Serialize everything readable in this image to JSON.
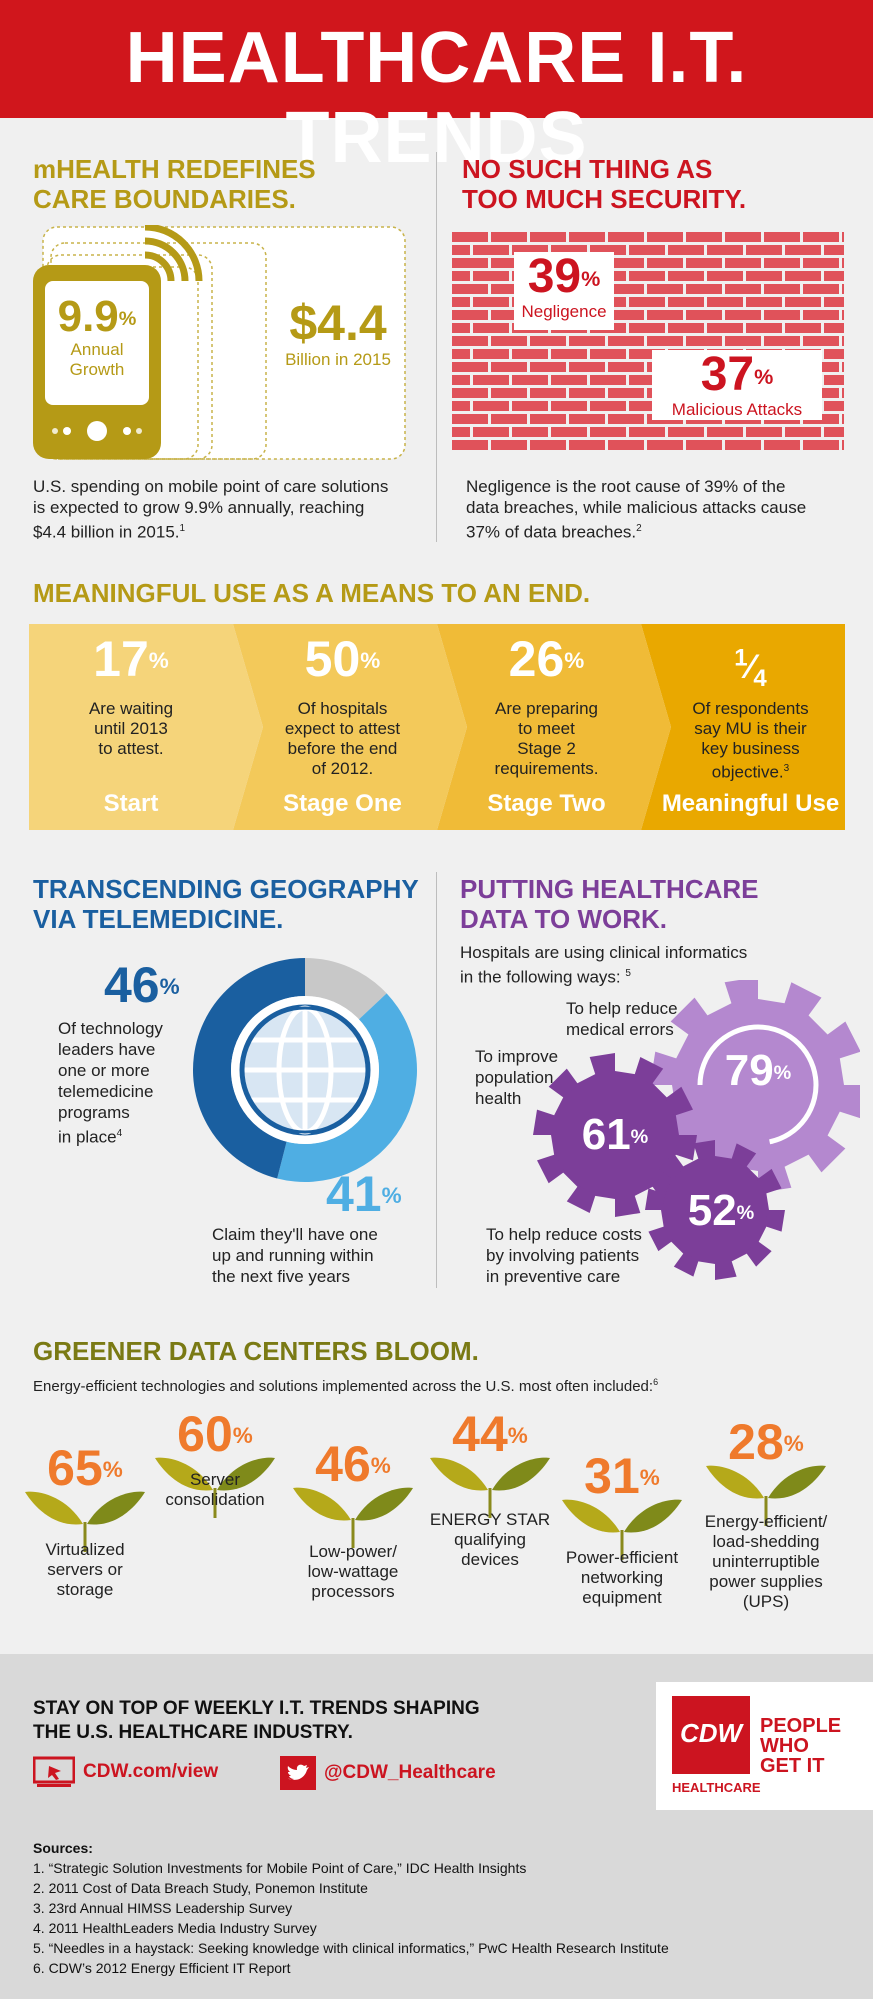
{
  "header": {
    "title": "HEALTHCARE I.T. TRENDS"
  },
  "mhealth": {
    "title_line1": "mHEALTH REDEFINES",
    "title_line2": "CARE BOUNDARIES.",
    "pct": "9.9",
    "pct_unit": "%",
    "pct_label_1": "Annual",
    "pct_label_2": "Growth",
    "amount": "$4.4",
    "amount_label": "Billion in 2015",
    "desc_1": "U.S. spending on mobile point of care solutions",
    "desc_2": "is expected to grow 9.9% annually, reaching",
    "desc_3": "$4.4 billion in 2015.",
    "desc_ref": "1"
  },
  "security": {
    "title_line1": "NO SUCH THING AS",
    "title_line2": "TOO MUCH SECURITY.",
    "stat1_value": "39",
    "stat1_unit": "%",
    "stat1_label": "Negligence",
    "stat2_value": "37",
    "stat2_unit": "%",
    "stat2_label": "Malicious Attacks",
    "desc_1": "Negligence is the root cause of 39% of the",
    "desc_2": "data breaches, while malicious attacks cause",
    "desc_3": "37% of data breaches.",
    "desc_ref": "2"
  },
  "meaningful_use": {
    "title": "MEANINGFUL USE AS A MEANS TO AN END.",
    "steps": [
      {
        "value": "17",
        "unit": "%",
        "desc": [
          "Are waiting",
          "until 2013",
          "to attest."
        ],
        "ref": "",
        "label": "Start",
        "color": "#f5d47a"
      },
      {
        "value": "50",
        "unit": "%",
        "desc": [
          "Of hospitals",
          "expect to attest",
          "before the end",
          "of 2012."
        ],
        "ref": "",
        "label": "Stage One",
        "color": "#f3c95a"
      },
      {
        "value": "26",
        "unit": "%",
        "desc": [
          "Are preparing",
          "to meet",
          "Stage 2",
          "requirements."
        ],
        "ref": "",
        "label": "Stage Two",
        "color": "#f0bb37"
      },
      {
        "value": "1/4",
        "unit": "",
        "desc": [
          "Of respondents",
          "say MU is their",
          "key business",
          "objective."
        ],
        "ref": "3",
        "label": "Meaningful Use",
        "color": "#e9a800"
      }
    ]
  },
  "telemedicine": {
    "title_line1": "TRANSCENDING GEOGRAPHY",
    "title_line2": "VIA TELEMEDICINE.",
    "stat1_value": "46",
    "stat1_unit": "%",
    "stat1_desc": [
      "Of technology",
      "leaders have",
      "one or more",
      "telemedicine",
      "programs",
      "in place"
    ],
    "stat1_ref": "4",
    "stat2_value": "41",
    "stat2_unit": "%",
    "stat2_desc": [
      "Claim they'll have one",
      "up and running within",
      "the next five years"
    ],
    "donut_values": [
      46,
      41,
      13
    ],
    "donut_colors": [
      "#1a5fa0",
      "#4faee3",
      "#c8c8c8"
    ]
  },
  "informatics": {
    "title_line1": "PUTTING HEALTHCARE",
    "title_line2": "DATA TO WORK.",
    "intro_1": "Hospitals are using clinical informatics",
    "intro_2": "in the following ways:",
    "intro_ref": "5",
    "gear1_value": "79",
    "gear1_unit": "%",
    "gear1_label": [
      "To help reduce",
      "medical errors"
    ],
    "gear2_value": "61",
    "gear2_unit": "%",
    "gear2_label": [
      "To improve",
      "population",
      "health"
    ],
    "gear3_value": "52",
    "gear3_unit": "%",
    "gear3_label": [
      "To help reduce costs",
      "by involving patients",
      "in preventive care"
    ]
  },
  "green": {
    "title": "GREENER DATA CENTERS BLOOM.",
    "intro": "Energy-efficient technologies and solutions implemented  across the U.S. most often included:",
    "intro_ref": "6",
    "items": [
      {
        "value": "65",
        "unit": "%",
        "label": [
          "Virtualized",
          "servers or",
          "storage"
        ]
      },
      {
        "value": "60",
        "unit": "%",
        "label": [
          "Server",
          "consolidation"
        ]
      },
      {
        "value": "46",
        "unit": "%",
        "label": [
          "Low-power/",
          "low-wattage",
          "processors"
        ]
      },
      {
        "value": "44",
        "unit": "%",
        "label": [
          "ENERGY STAR",
          "qualifying",
          "devices"
        ]
      },
      {
        "value": "31",
        "unit": "%",
        "label": [
          "Power-efficient",
          "networking",
          "equipment"
        ]
      },
      {
        "value": "28",
        "unit": "%",
        "label": [
          "Energy-efficient/",
          "load-shedding",
          "uninterruptible",
          "power supplies",
          "(UPS)"
        ]
      }
    ]
  },
  "footer": {
    "cta_1": "STAY ON TOP OF WEEKLY I.T. TRENDS SHAPING",
    "cta_2": "THE U.S. HEALTHCARE INDUSTRY.",
    "link_web": "CDW.com/view",
    "link_twitter": "@CDW_Healthcare",
    "logo_text": "CDW",
    "logo_sub": "HEALTHCARE",
    "tagline": [
      "PEOPLE",
      "WHO",
      "GET IT"
    ],
    "sources_title": "Sources:",
    "sources": [
      "1. “Strategic Solution Investments for Mobile Point of Care,” IDC Health Insights",
      "2. 2011 Cost of Data Breach Study, Ponemon Institute",
      "3. 23rd Annual HIMSS Leadership Survey",
      "4. 2011 HealthLeaders Media Industry Survey",
      "5. “Needles in a haystack: Seeking knowledge with clinical informatics,” PwC Health Research Institute",
      "6. CDW’s 2012 Energy Efficient IT Report"
    ]
  },
  "colors": {
    "brand_red": "#d0161c",
    "olive": "#b59a16",
    "blue": "#1a5fa0",
    "light_blue": "#4faee3",
    "purple": "#7c3e99",
    "orange": "#ef7a2c",
    "brick": "#e0525a"
  }
}
